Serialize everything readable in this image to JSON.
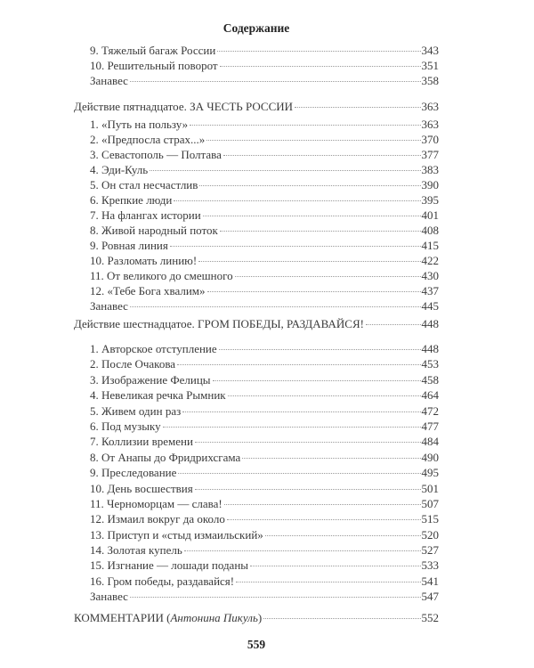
{
  "header": {
    "title": "Содержание"
  },
  "toc": {
    "intro": [
      {
        "label": "9. Тяжелый багаж России",
        "page": "343"
      },
      {
        "label": "10. Решительный поворот",
        "page": "351"
      },
      {
        "label": "Занавес",
        "page": "358"
      }
    ],
    "act15": {
      "label": "Действие пятнадцатое. ЗА ЧЕСТЬ РОССИИ",
      "page": "363",
      "items": [
        {
          "label": "1. «Путь на пользу»",
          "page": "363"
        },
        {
          "label": "2. «Предпосла страх...»",
          "page": "370"
        },
        {
          "label": "3. Севастополь — Полтава",
          "page": "377"
        },
        {
          "label": "4. Эди-Куль",
          "page": "383"
        },
        {
          "label": "5. Он стал несчастлив",
          "page": "390"
        },
        {
          "label": "6. Крепкие люди",
          "page": "395"
        },
        {
          "label": "7. На флангах истории",
          "page": "401"
        },
        {
          "label": "8. Живой народный поток",
          "page": "408"
        },
        {
          "label": "9. Ровная линия",
          "page": "415"
        },
        {
          "label": "10. Разломать линию!",
          "page": "422"
        },
        {
          "label": "11. От великого до смешного",
          "page": "430"
        },
        {
          "label": "12. «Тебе Бога хвалим»",
          "page": "437"
        },
        {
          "label": "Занавес",
          "page": "445"
        }
      ]
    },
    "act16": {
      "label": "Действие шестнадцатое. ГРОМ ПОБЕДЫ, РАЗДАВАЙСЯ!",
      "page": "448",
      "items": [
        {
          "label": "1. Авторское отступление",
          "page": "448"
        },
        {
          "label": "2. После Очакова",
          "page": "453"
        },
        {
          "label": "3. Изображение Фелицы",
          "page": "458"
        },
        {
          "label": "4. Невеликая речка Рымник",
          "page": "464"
        },
        {
          "label": "5. Живем один раз",
          "page": "472"
        },
        {
          "label": "6. Под музыку",
          "page": "477"
        },
        {
          "label": "7. Коллизии времени",
          "page": "484"
        },
        {
          "label": "8. От Анапы до Фридрихсгама",
          "page": "490"
        },
        {
          "label": "9. Преследование",
          "page": "495"
        },
        {
          "label": "10. День восшествия",
          "page": "501"
        },
        {
          "label": "11. Черноморцам — слава!",
          "page": "507"
        },
        {
          "label": "12. Измаил вокруг да около",
          "page": "515"
        },
        {
          "label": "13. Приступ и «стыд измаильский»",
          "page": "520"
        },
        {
          "label": "14. Золотая купель",
          "page": "527"
        },
        {
          "label": "15. Изгнание — лошади поданы",
          "page": "533"
        },
        {
          "label": "16. Гром победы, раздавайся!",
          "page": "541"
        },
        {
          "label": "Занавес",
          "page": "547"
        }
      ]
    },
    "comments": {
      "label": "КОММЕНТАРИИ",
      "author": "Антонина Пикуль",
      "page": "552"
    }
  },
  "footer": {
    "page_number": "559"
  }
}
